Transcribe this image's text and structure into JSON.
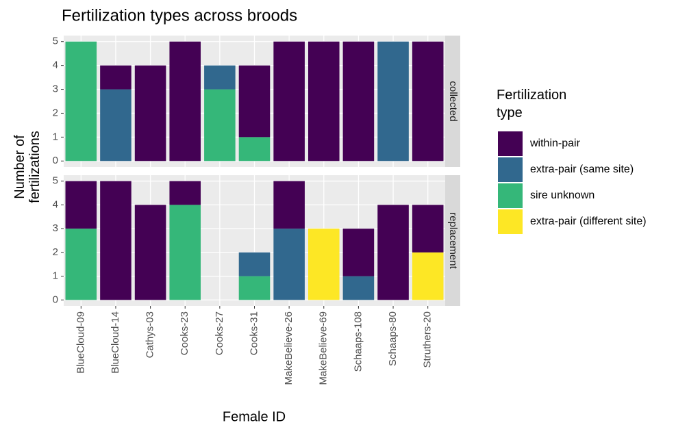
{
  "chart_data": {
    "type": "bar",
    "stacked": true,
    "title": "Fertilization types across broods",
    "x_label": "Female ID",
    "y_label": "Number of fertilizations",
    "legend_title": "Fertilization type",
    "categories": [
      "BlueCloud-09",
      "BlueCloud-14",
      "Cathys-03",
      "Cooks-23",
      "Cooks-27",
      "Cooks-31",
      "MakeBelieve-26",
      "MakeBelieve-69",
      "Schaaps-108",
      "Schaaps-80",
      "Struthers-20"
    ],
    "ylim": [
      -0.25,
      5.25
    ],
    "yticks": [
      0,
      1,
      2,
      3,
      4,
      5
    ],
    "grid": true,
    "legend": "right",
    "facets": [
      {
        "label": "collected",
        "series": [
          {
            "name": "within-pair",
            "color": "#440154",
            "values": [
              0,
              1,
              4,
              5,
              0,
              3,
              5,
              5,
              5,
              0,
              5
            ]
          },
          {
            "name": "extra-pair (same site)",
            "color": "#31688e",
            "values": [
              0,
              3,
              0,
              0,
              1,
              0,
              0,
              0,
              0,
              5,
              0
            ]
          },
          {
            "name": "sire unknown",
            "color": "#35b779",
            "values": [
              5,
              0,
              0,
              0,
              3,
              1,
              0,
              0,
              0,
              0,
              0
            ]
          },
          {
            "name": "extra-pair (different site)",
            "color": "#fde725",
            "values": [
              0,
              0,
              0,
              0,
              0,
              0,
              0,
              0,
              0,
              0,
              0
            ]
          }
        ]
      },
      {
        "label": "replacement",
        "series": [
          {
            "name": "within-pair",
            "color": "#440154",
            "values": [
              2,
              5,
              4,
              1,
              0,
              0,
              2,
              0,
              2,
              4,
              2
            ]
          },
          {
            "name": "extra-pair (same site)",
            "color": "#31688e",
            "values": [
              0,
              0,
              0,
              0,
              0,
              1,
              3,
              0,
              1,
              0,
              0
            ]
          },
          {
            "name": "sire unknown",
            "color": "#35b779",
            "values": [
              3,
              0,
              0,
              4,
              0,
              1,
              0,
              0,
              0,
              0,
              0
            ]
          },
          {
            "name": "extra-pair (different site)",
            "color": "#fde725",
            "values": [
              0,
              0,
              0,
              0,
              0,
              0,
              0,
              3,
              0,
              0,
              2
            ]
          }
        ]
      }
    ]
  }
}
